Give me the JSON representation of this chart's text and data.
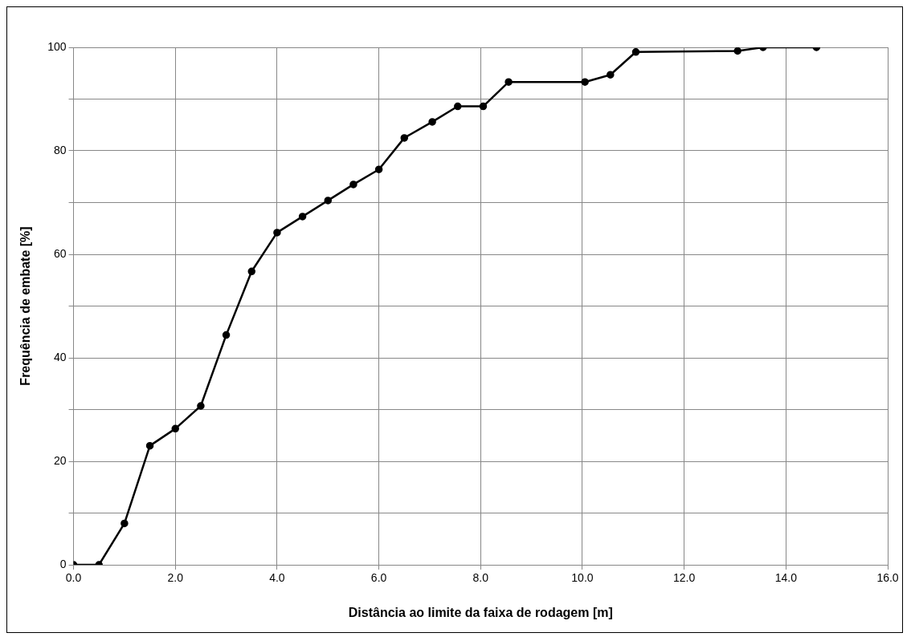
{
  "chart_data": {
    "type": "line",
    "xlabel": "Distância ao limite da faixa de rodagem [m]",
    "ylabel": "Frequência de embate [%]",
    "x": [
      0,
      0.5,
      1.0,
      1.5,
      2.0,
      2.5,
      3.0,
      3.5,
      4.0,
      4.5,
      5.0,
      5.5,
      6.0,
      6.5,
      7.05,
      7.55,
      8.05,
      8.55,
      10.05,
      10.55,
      11.05,
      13.05,
      13.55,
      14.6
    ],
    "series": [
      {
        "color": "#000000",
        "values": [
          0,
          0,
          8,
          23,
          26.3,
          30.7,
          44.4,
          56.7,
          64.2,
          67.3,
          70.4,
          73.5,
          76.4,
          82.5,
          85.6,
          88.6,
          88.6,
          93.3,
          93.3,
          94.7,
          99.1,
          99.3,
          100,
          100
        ]
      }
    ],
    "xlim": [
      0,
      16
    ],
    "xticks": [
      {
        "value": 0,
        "label": "0.0"
      },
      {
        "value": 2,
        "label": "2.0"
      },
      {
        "value": 4,
        "label": "4.0"
      },
      {
        "value": 6,
        "label": "6.0"
      },
      {
        "value": 8,
        "label": "8.0"
      },
      {
        "value": 10,
        "label": "10.0"
      },
      {
        "value": 12,
        "label": "12.0"
      },
      {
        "value": 14,
        "label": "14.0"
      },
      {
        "value": 16,
        "label": "16.0"
      }
    ],
    "ylim": [
      0,
      100
    ],
    "yticks": [
      0,
      {
        "value": 10,
        "label": null
      },
      20,
      {
        "value": 30,
        "label": null
      },
      40,
      {
        "value": 50,
        "label": null
      },
      60,
      {
        "value": 70,
        "label": null
      },
      80,
      {
        "value": 90,
        "label": null
      },
      100
    ],
    "grid": true,
    "legend": false,
    "marker": "circle",
    "line_style": "solid"
  }
}
